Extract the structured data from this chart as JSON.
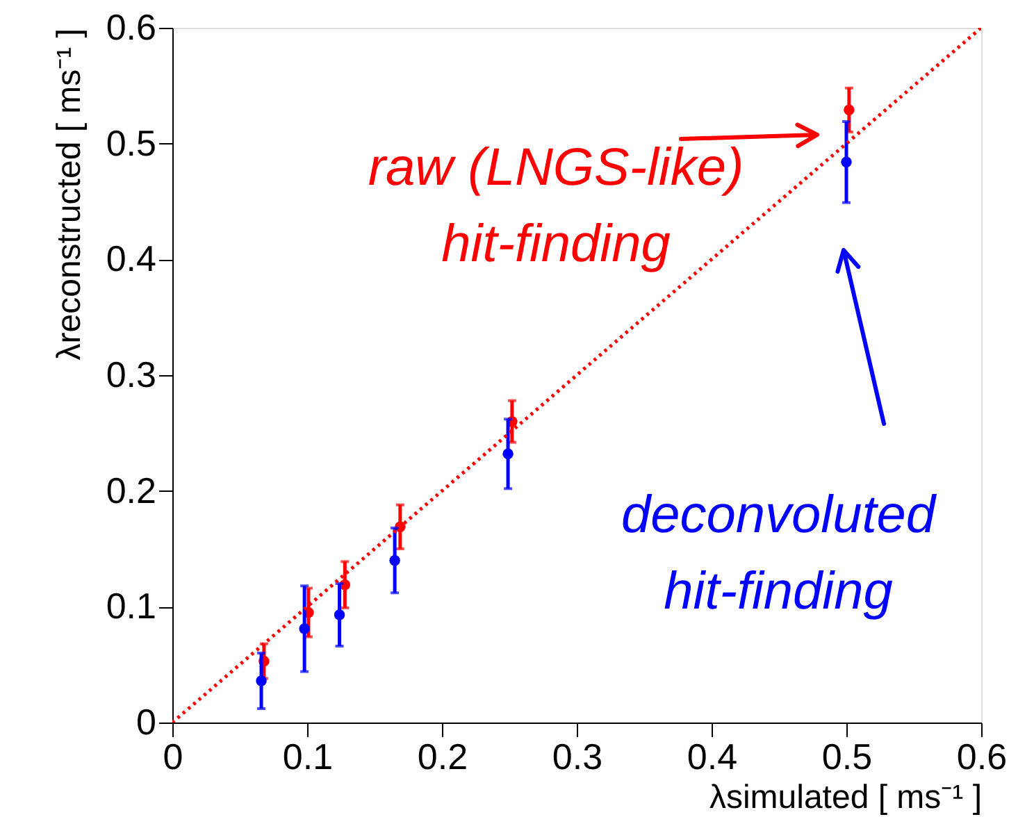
{
  "chart_data": {
    "type": "scatter",
    "xlabel": "λsimulated [ ms⁻¹ ]",
    "ylabel": "λreconstructed [ ms⁻¹ ]",
    "xlim": [
      0,
      0.6
    ],
    "ylim": [
      0,
      0.6
    ],
    "xticks": [
      0,
      0.1,
      0.2,
      0.3,
      0.4,
      0.5,
      0.6
    ],
    "yticks": [
      0,
      0.1,
      0.2,
      0.3,
      0.4,
      0.5,
      0.6
    ],
    "grid": false,
    "marker": "circle",
    "series": [
      {
        "name": "raw (LNGS-like)\nhit-finding",
        "color": "#ff0000",
        "x": [
          0.068,
          0.101,
          0.128,
          0.169,
          0.252,
          0.502
        ],
        "values": [
          0.053,
          0.095,
          0.119,
          0.169,
          0.26,
          0.529
        ],
        "errors": [
          0.015,
          0.021,
          0.02,
          0.019,
          0.018,
          0.019
        ]
      },
      {
        "name": "deconvoluted\nhit-finding",
        "color": "#0000ff",
        "x": [
          0.066,
          0.098,
          0.124,
          0.165,
          0.249,
          0.5
        ],
        "values": [
          0.036,
          0.081,
          0.093,
          0.14,
          0.232,
          0.484
        ],
        "errors": [
          0.024,
          0.037,
          0.027,
          0.028,
          0.03,
          0.035
        ]
      },
      {
        "type": "line",
        "color": "#ff0000",
        "line_style": "dotted",
        "marker": "none",
        "x": [
          0,
          0.6
        ],
        "values": [
          0,
          0.6
        ]
      }
    ]
  }
}
